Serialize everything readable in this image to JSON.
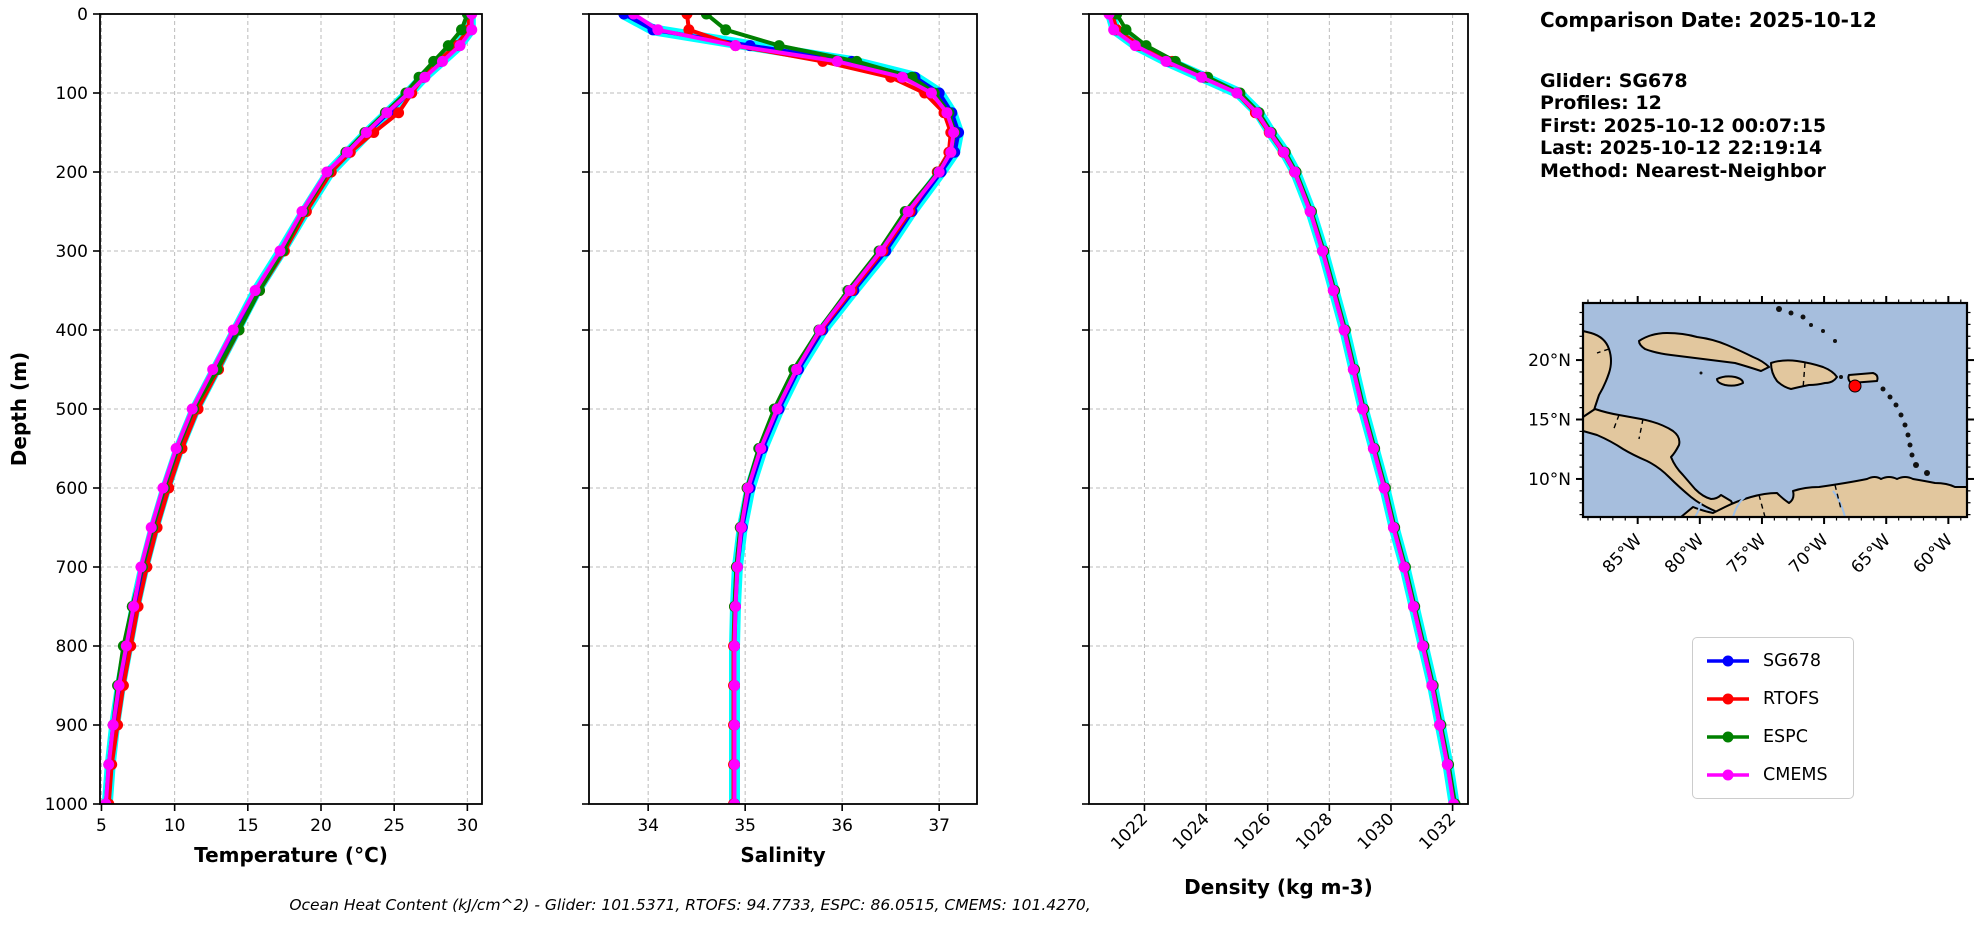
{
  "header": {
    "comparison_date": "Comparison Date: 2025-10-12",
    "glider": "Glider: SG678",
    "profiles": "Profiles: 12",
    "first": "First: 2025-10-12 00:07:15",
    "last": "Last: 2025-10-12 22:19:14",
    "method": "Method: Nearest-Neighbor"
  },
  "footer": "Ocean Heat Content (kJ/cm^2) - Glider: 101.5371,  RTOFS: 94.7733,  ESPC: 86.0515,  CMEMS: 101.4270,",
  "legend": {
    "entries": [
      {
        "label": "SG678",
        "color": "#0000ff"
      },
      {
        "label": "RTOFS",
        "color": "#ff0000"
      },
      {
        "label": "ESPC",
        "color": "#008000"
      },
      {
        "label": "CMEMS",
        "color": "#ff00ff"
      }
    ]
  },
  "colors": {
    "glider": "#0000ff",
    "rtofs": "#ff0000",
    "espc": "#008000",
    "cmems": "#ff00ff",
    "raw_profiles": "#00ffff",
    "grid": "#bbbbbb",
    "ocean": "#a6bedd",
    "land": "#e2c79e",
    "river": "#9fc0e8",
    "marker": "#ff0000"
  },
  "chart_data": {
    "type": "line",
    "orientation": "depth-profile",
    "ylabel": "Depth (m)",
    "ylim": [
      0,
      1000
    ],
    "yticks": [
      0,
      100,
      200,
      300,
      400,
      500,
      600,
      700,
      800,
      900,
      1000
    ],
    "depth_m": [
      0,
      20,
      40,
      60,
      80,
      100,
      125,
      150,
      175,
      200,
      250,
      300,
      350,
      400,
      450,
      500,
      550,
      600,
      650,
      700,
      750,
      800,
      850,
      900,
      950,
      1000
    ],
    "plots": [
      {
        "id": "temperature",
        "xlabel": "Temperature (°C)",
        "xlim": [
          4.9,
          31.0
        ],
        "xticks": [
          5,
          10,
          15,
          20,
          25,
          30
        ],
        "rotate_xticks": false,
        "series": [
          {
            "name": "SG678",
            "color": "#0000ff",
            "values": [
              30.2,
              30.2,
              29.4,
              28.2,
              27.0,
              26.0,
              24.6,
              23.2,
              21.9,
              20.6,
              18.9,
              17.3,
              15.6,
              14.2,
              12.8,
              11.4,
              10.3,
              9.4,
              8.6,
              7.9,
              7.3,
              6.8,
              6.3,
              5.9,
              5.6,
              5.4
            ]
          },
          {
            "name": "RTOFS",
            "color": "#ff0000",
            "values": [
              30.1,
              30.1,
              29.2,
              28.0,
              27.0,
              26.2,
              25.3,
              23.6,
              22.0,
              20.7,
              19.0,
              17.5,
              15.8,
              14.4,
              13.0,
              11.6,
              10.5,
              9.6,
              8.8,
              8.1,
              7.5,
              7.0,
              6.5,
              6.1,
              5.7,
              5.5
            ]
          },
          {
            "name": "ESPC",
            "color": "#008000",
            "values": [
              30.0,
              29.6,
              28.7,
              27.7,
              26.7,
              25.8,
              24.4,
              23.0,
              21.7,
              20.5,
              18.8,
              17.4,
              15.8,
              14.4,
              12.9,
              11.3,
              10.2,
              9.3,
              8.5,
              7.8,
              7.1,
              6.5,
              6.1,
              5.8,
              5.5,
              5.3
            ]
          },
          {
            "name": "CMEMS",
            "color": "#ff00ff",
            "values": [
              30.3,
              30.3,
              29.5,
              28.3,
              27.1,
              26.0,
              24.5,
              23.1,
              21.8,
              20.4,
              18.7,
              17.2,
              15.5,
              14.0,
              12.6,
              11.2,
              10.1,
              9.2,
              8.4,
              7.7,
              7.2,
              6.7,
              6.2,
              5.8,
              5.5,
              5.3
            ]
          }
        ]
      },
      {
        "id": "salinity",
        "xlabel": "Salinity",
        "xlim": [
          33.39,
          37.39
        ],
        "xticks": [
          34,
          35,
          36,
          37
        ],
        "rotate_xticks": false,
        "series": [
          {
            "name": "SG678",
            "color": "#0000ff",
            "values": [
              33.75,
              34.05,
              35.05,
              36.1,
              36.75,
              37.0,
              37.13,
              37.2,
              37.16,
              37.02,
              36.72,
              36.45,
              36.12,
              35.8,
              35.55,
              35.35,
              35.18,
              35.05,
              34.97,
              34.92,
              34.9,
              34.89,
              34.89,
              34.89,
              34.89,
              34.89
            ]
          },
          {
            "name": "RTOFS",
            "color": "#ff0000",
            "values": [
              34.4,
              34.42,
              34.9,
              35.8,
              36.5,
              36.85,
              37.05,
              37.12,
              37.1,
              36.98,
              36.7,
              36.42,
              36.1,
              35.78,
              35.52,
              35.32,
              35.15,
              35.02,
              34.95,
              34.91,
              34.89,
              34.88,
              34.88,
              34.88,
              34.88,
              34.88
            ]
          },
          {
            "name": "ESPC",
            "color": "#008000",
            "values": [
              34.6,
              34.8,
              35.35,
              36.15,
              36.72,
              36.95,
              37.1,
              37.16,
              37.12,
              36.99,
              36.65,
              36.38,
              36.06,
              35.76,
              35.5,
              35.3,
              35.14,
              35.02,
              34.95,
              34.91,
              34.89,
              34.89,
              34.89,
              34.89,
              34.89,
              34.89
            ]
          },
          {
            "name": "CMEMS",
            "color": "#ff00ff",
            "values": [
              33.85,
              34.1,
              34.9,
              35.95,
              36.62,
              36.92,
              37.08,
              37.15,
              37.12,
              37.0,
              36.68,
              36.4,
              36.08,
              35.77,
              35.53,
              35.33,
              35.16,
              35.03,
              34.96,
              34.92,
              34.9,
              34.89,
              34.89,
              34.89,
              34.89,
              34.89
            ]
          }
        ]
      },
      {
        "id": "density",
        "xlabel": "Density (kg m-3)",
        "xlim": [
          1020.2,
          1032.5
        ],
        "xticks": [
          1022,
          1024,
          1026,
          1028,
          1030,
          1032
        ],
        "rotate_xticks": true,
        "series": [
          {
            "name": "SG678",
            "color": "#0000ff",
            "values": [
              1020.9,
              1021.05,
              1021.75,
              1022.75,
              1023.9,
              1025.05,
              1025.7,
              1026.1,
              1026.55,
              1026.9,
              1027.4,
              1027.8,
              1028.15,
              1028.5,
              1028.8,
              1029.1,
              1029.45,
              1029.8,
              1030.1,
              1030.45,
              1030.75,
              1031.05,
              1031.35,
              1031.6,
              1031.85,
              1032.05
            ]
          },
          {
            "name": "RTOFS",
            "color": "#ff0000",
            "values": [
              1020.95,
              1021.1,
              1021.85,
              1022.9,
              1024.0,
              1025.0,
              1025.6,
              1026.05,
              1026.5,
              1026.87,
              1027.38,
              1027.78,
              1028.13,
              1028.48,
              1028.78,
              1029.08,
              1029.43,
              1029.78,
              1030.08,
              1030.43,
              1030.73,
              1031.03,
              1031.33,
              1031.58,
              1031.83,
              1032.05
            ]
          },
          {
            "name": "ESPC",
            "color": "#008000",
            "values": [
              1021.1,
              1021.4,
              1022.05,
              1023.0,
              1024.05,
              1025.1,
              1025.72,
              1026.12,
              1026.57,
              1026.92,
              1027.42,
              1027.82,
              1028.17,
              1028.52,
              1028.82,
              1029.12,
              1029.47,
              1029.82,
              1030.12,
              1030.47,
              1030.77,
              1031.07,
              1031.37,
              1031.62,
              1031.87,
              1032.08
            ]
          },
          {
            "name": "CMEMS",
            "color": "#ff00ff",
            "values": [
              1020.85,
              1021.0,
              1021.7,
              1022.7,
              1023.85,
              1025.0,
              1025.65,
              1026.07,
              1026.52,
              1026.88,
              1027.38,
              1027.78,
              1028.13,
              1028.48,
              1028.78,
              1029.08,
              1029.43,
              1029.78,
              1030.08,
              1030.43,
              1030.73,
              1031.03,
              1031.33,
              1031.58,
              1031.83,
              1032.03
            ]
          }
        ]
      }
    ]
  },
  "map": {
    "lat_tick_labels": [
      "20°N",
      "15°N",
      "10°N"
    ],
    "lat_tick_values": [
      20,
      15,
      10
    ],
    "lon_tick_labels": [
      "85°W",
      "80°W",
      "75°W",
      "70°W",
      "65°W",
      "60°W"
    ],
    "lon_tick_values": [
      85,
      80,
      75,
      70,
      65,
      60
    ],
    "extent": {
      "west": 89.4,
      "east": 58.5,
      "south": 6.8,
      "north": 24.8
    }
  }
}
